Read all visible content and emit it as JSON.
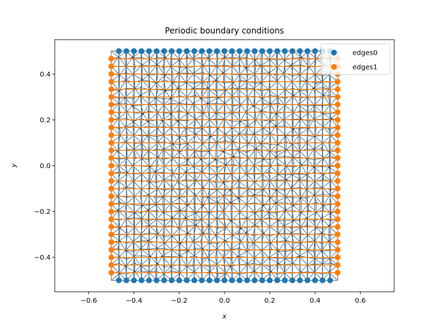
{
  "chart_data": {
    "type": "scatter",
    "title": "Periodic boundary conditions",
    "xlabel": "x",
    "ylabel": "y",
    "xlim": [
      -0.75,
      0.75
    ],
    "ylim": [
      -0.55,
      0.55
    ],
    "xticks": [
      -0.6,
      -0.4,
      -0.2,
      0.0,
      0.2,
      0.4,
      0.6
    ],
    "xtick_labels": [
      "−0.6",
      "−0.4",
      "−0.2",
      "0.0",
      "0.2",
      "0.4",
      "0.6"
    ],
    "yticks": [
      -0.4,
      -0.2,
      0.0,
      0.2,
      0.4
    ],
    "ytick_labels": [
      "−0.4",
      "−0.2",
      "0.0",
      "0.2",
      "0.4"
    ],
    "grid": false,
    "legend_position": "top-right",
    "mesh": {
      "description": "triangular mesh of the unit square [-0.5,0.5]x[-0.5,0.5]",
      "xmin": -0.5,
      "xmax": 0.5,
      "ymin": -0.5,
      "ymax": 0.5,
      "divisions": 30,
      "color": "#000000"
    },
    "series": [
      {
        "name": "edges0",
        "color": "#1f77b4",
        "description": "top and bottom boundary nodes, x = -0.467..0.467 step 0.0333, y = ±0.5",
        "x_start": -0.4667,
        "x_end": 0.4667,
        "count": 29,
        "y_values": [
          -0.5,
          0.5
        ]
      },
      {
        "name": "edges1",
        "color": "#ff7f0e",
        "description": "left and right boundary nodes, x = ±0.5, y = -0.467..0.467 step 0.0333",
        "y_start": -0.4667,
        "y_end": 0.4667,
        "count": 29,
        "x_values": [
          -0.5,
          0.5
        ]
      }
    ]
  }
}
